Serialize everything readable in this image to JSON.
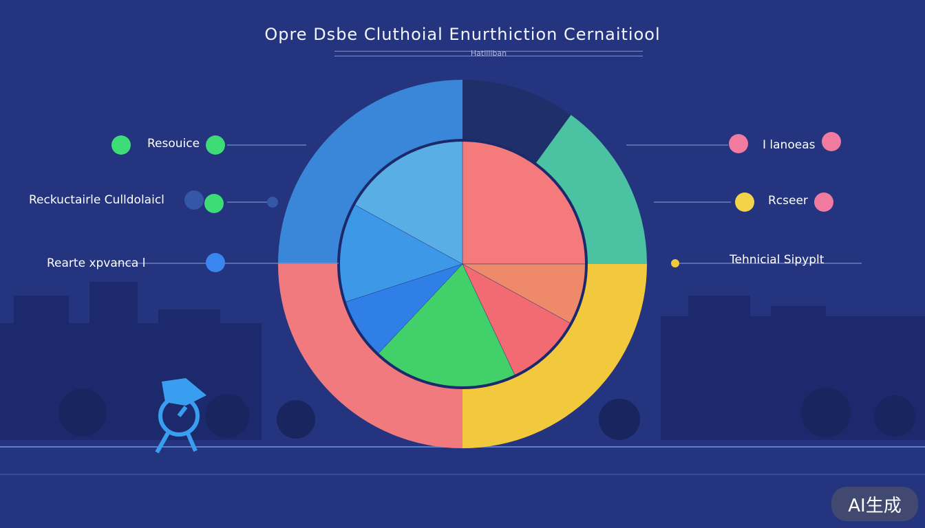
{
  "chart_data": {
    "type": "pie",
    "title": "Opre Dsbe Cluthoial Enurthiction Cernaitiool",
    "subtitle": "Hatilliban",
    "categories": [
      "Resouice",
      "Reckuctairle Culldolaicl",
      "Rearte xpvanca l",
      "I lanoeas",
      "Rcseer",
      "Tehnicial Sipyplt"
    ],
    "outer_ring": [
      {
        "color": "#3a86d8",
        "value": 25
      },
      {
        "color": "#1f2f6a",
        "value": 10
      },
      {
        "color": "#4bc3a3",
        "value": 15
      },
      {
        "color": "#f2c83c",
        "value": 25
      },
      {
        "color": "#f07a7e",
        "value": 25
      }
    ],
    "inner_pie": [
      {
        "color": "#f57a7c",
        "value": 25
      },
      {
        "color": "#ee8a6a",
        "value": 8
      },
      {
        "color": "#f26a72",
        "value": 10
      },
      {
        "color": "#42d06a",
        "value": 19
      },
      {
        "color": "#2f7fe6",
        "value": 8
      },
      {
        "color": "#3d98e8",
        "value": 13
      },
      {
        "color": "#5aaee6",
        "value": 17
      }
    ]
  },
  "badge": {
    "text": "AI生成"
  }
}
